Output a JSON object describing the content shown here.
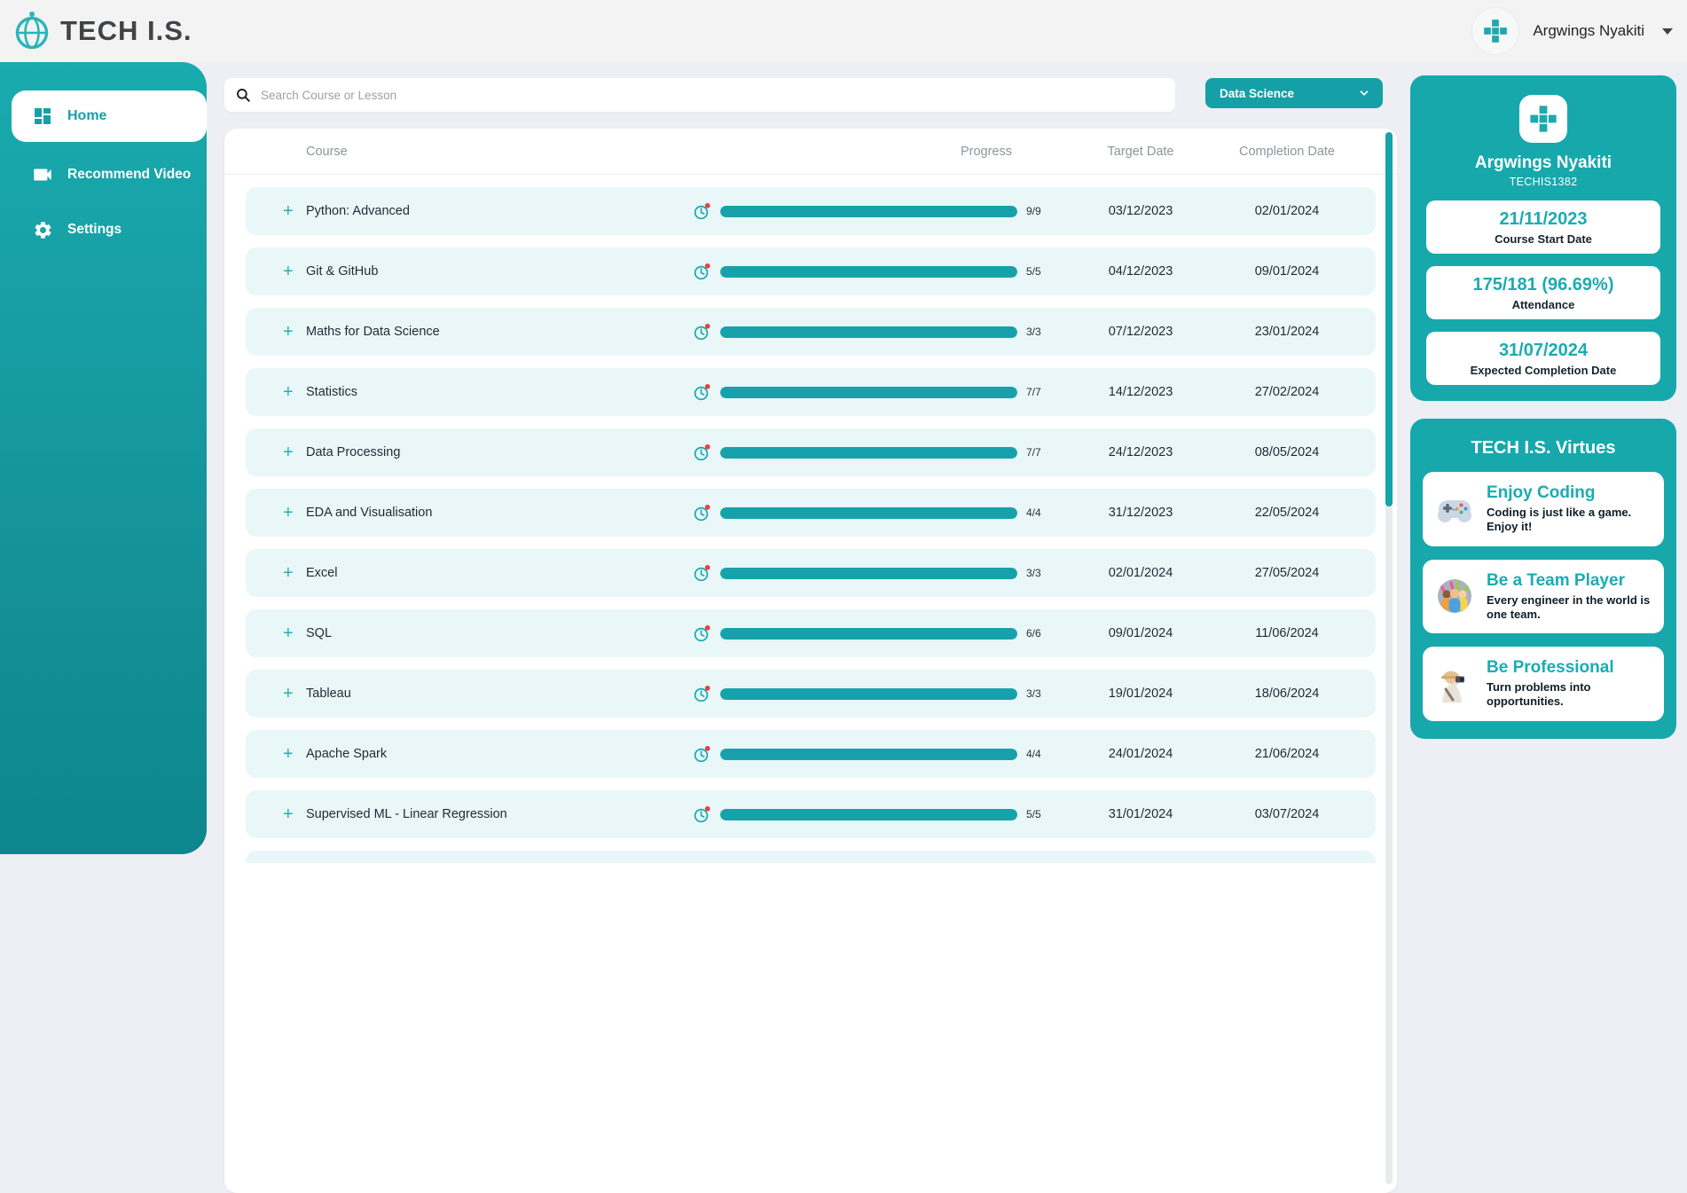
{
  "colors": {
    "teal_primary": "#17a8ac",
    "teal_dark": "#0d868d",
    "teal_accent_text": "#1aacb2",
    "row_bg": "#e9f7f8",
    "page_bg": "#edeff4",
    "header_bg": "#f2f3f2",
    "alert_red": "#e8413c"
  },
  "header": {
    "logo_text": "TECH I.S.",
    "user_name": "Argwings Nyakiti"
  },
  "sidebar": {
    "items": [
      {
        "label": "Home",
        "icon": "dashboard-icon",
        "active": true
      },
      {
        "label": "Recommend Video",
        "icon": "video-camera-icon",
        "active": false
      },
      {
        "label": "Settings",
        "icon": "gear-icon",
        "active": false
      }
    ]
  },
  "toolbar": {
    "search_placeholder": "Search Course or Lesson",
    "category_selected": "Data Science"
  },
  "table": {
    "columns": {
      "course": "Course",
      "progress": "Progress",
      "target": "Target Date",
      "completion": "Completion Date"
    },
    "rows": [
      {
        "course": "Python: Advanced",
        "progress": "9/9",
        "progress_pct": 100,
        "target_date": "03/12/2023",
        "completion_date": "02/01/2024"
      },
      {
        "course": "Git & GitHub",
        "progress": "5/5",
        "progress_pct": 100,
        "target_date": "04/12/2023",
        "completion_date": "09/01/2024"
      },
      {
        "course": "Maths for Data Science",
        "progress": "3/3",
        "progress_pct": 100,
        "target_date": "07/12/2023",
        "completion_date": "23/01/2024"
      },
      {
        "course": "Statistics",
        "progress": "7/7",
        "progress_pct": 100,
        "target_date": "14/12/2023",
        "completion_date": "27/02/2024"
      },
      {
        "course": "Data Processing",
        "progress": "7/7",
        "progress_pct": 100,
        "target_date": "24/12/2023",
        "completion_date": "08/05/2024"
      },
      {
        "course": "EDA and Visualisation",
        "progress": "4/4",
        "progress_pct": 100,
        "target_date": "31/12/2023",
        "completion_date": "22/05/2024"
      },
      {
        "course": "Excel",
        "progress": "3/3",
        "progress_pct": 100,
        "target_date": "02/01/2024",
        "completion_date": "27/05/2024"
      },
      {
        "course": "SQL",
        "progress": "6/6",
        "progress_pct": 100,
        "target_date": "09/01/2024",
        "completion_date": "11/06/2024"
      },
      {
        "course": "Tableau",
        "progress": "3/3",
        "progress_pct": 100,
        "target_date": "19/01/2024",
        "completion_date": "18/06/2024"
      },
      {
        "course": "Apache Spark",
        "progress": "4/4",
        "progress_pct": 100,
        "target_date": "24/01/2024",
        "completion_date": "21/06/2024"
      },
      {
        "course": "Supervised ML - Linear Regression",
        "progress": "5/5",
        "progress_pct": 100,
        "target_date": "31/01/2024",
        "completion_date": "03/07/2024"
      }
    ]
  },
  "profile": {
    "name": "Argwings Nyakiti",
    "member_id": "TECHIS1382",
    "stats": [
      {
        "value": "21/11/2023",
        "label": "Course Start Date"
      },
      {
        "value": "175/181 (96.69%)",
        "label": "Attendance"
      },
      {
        "value": "31/07/2024",
        "label": "Expected Completion Date"
      }
    ]
  },
  "virtues": {
    "title": "TECH I.S. Virtues",
    "items": [
      {
        "icon": "gamepad-icon",
        "title": "Enjoy Coding",
        "description": "Coding is just like a game. Enjoy it!"
      },
      {
        "icon": "team-icon",
        "title": "Be a Team Player",
        "description": "Every engineer in the world is one team."
      },
      {
        "icon": "professional-icon",
        "title": "Be Professional",
        "description": "Turn problems into opportunities."
      }
    ]
  }
}
